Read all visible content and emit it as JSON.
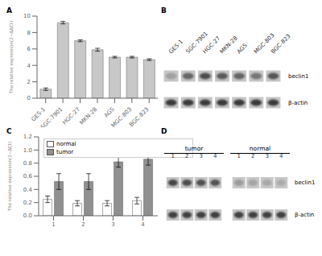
{
  "chart_data": [
    {
      "type": "bar",
      "title": "A",
      "categories": [
        "GES-1",
        "SGC-7901",
        "HGC-27",
        "MKN-28",
        "AGS",
        "MGC-803",
        "BGC-823"
      ],
      "values": [
        1.1,
        9.2,
        7.0,
        5.9,
        5.0,
        5.0,
        4.7
      ],
      "errors": [
        0.15,
        0.15,
        0.12,
        0.18,
        0.1,
        0.1,
        0.1
      ],
      "color": "#c8c8c8",
      "y_label": "The relative expression(2−ΔΔCt)",
      "ylim": [
        0,
        10
      ],
      "yticks": [
        0,
        2,
        4,
        6,
        8,
        10
      ]
    },
    {
      "type": "blot",
      "title": "B",
      "categories": [
        "GES-1",
        "SGC-7901",
        "HGC-27",
        "MKN-28",
        "AGS",
        "MGC-803",
        "BGC-823"
      ],
      "series": [
        {
          "name": "beclin1",
          "values": [
            0.25,
            0.62,
            0.78,
            0.68,
            0.62,
            0.52,
            0.72
          ]
        },
        {
          "name": "β-actin",
          "values": [
            0.88,
            0.88,
            0.88,
            0.88,
            0.88,
            0.88,
            0.88
          ]
        }
      ]
    },
    {
      "type": "bar",
      "title": "C",
      "categories": [
        "1",
        "2",
        "3",
        "4"
      ],
      "series": [
        {
          "name": "normal",
          "color": "#ffffff",
          "values": [
            0.25,
            0.19,
            0.19,
            0.23
          ],
          "errors": [
            0.05,
            0.04,
            0.04,
            0.05
          ]
        },
        {
          "name": "tumor",
          "color": "#909090",
          "values": [
            0.52,
            0.52,
            0.82,
            0.86
          ],
          "errors": [
            0.12,
            0.12,
            0.08,
            0.09
          ]
        }
      ],
      "y_label": "The relative expression(2−ΔCt)",
      "ylim": [
        0.0,
        1.2
      ],
      "yticks": [
        {
          "value": 0.0,
          "label": "0.0"
        },
        0.2,
        0.4,
        0.6,
        0.8,
        {
          "value": 1.0,
          "label": "1.0"
        },
        1.2
      ],
      "legend": "upper left"
    },
    {
      "type": "blot",
      "title": "D",
      "groups": [
        {
          "name": "tumor",
          "categories": [
            "1",
            "2",
            "3",
            "4"
          ],
          "series": [
            {
              "name": "beclin1",
              "values": [
                0.82,
                0.78,
                0.75,
                0.73
              ]
            },
            {
              "name": "β-actin",
              "values": [
                0.85,
                0.85,
                0.85,
                0.85
              ]
            }
          ]
        },
        {
          "name": "normal",
          "categories": [
            "1",
            "2",
            "3",
            "4"
          ],
          "series": [
            {
              "name": "beclin1",
              "values": [
                0.28,
                0.22,
                0.2,
                0.18
              ]
            },
            {
              "name": "β-actin",
              "values": [
                0.85,
                0.85,
                0.85,
                0.85
              ]
            }
          ]
        }
      ]
    }
  ]
}
